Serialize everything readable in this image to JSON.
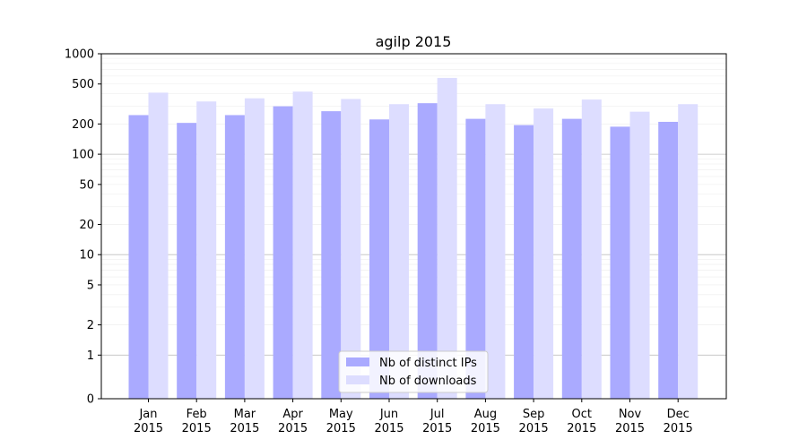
{
  "chart_data": {
    "type": "bar",
    "title": "agilp 2015",
    "xlabel": "",
    "ylabel": "",
    "y_scale": "symlog",
    "ylim": [
      0,
      1000
    ],
    "y_ticks": [
      0,
      1,
      2,
      5,
      10,
      20,
      50,
      100,
      200,
      500,
      1000
    ],
    "categories": [
      [
        "Jan",
        "2015"
      ],
      [
        "Feb",
        "2015"
      ],
      [
        "Mar",
        "2015"
      ],
      [
        "Apr",
        "2015"
      ],
      [
        "May",
        "2015"
      ],
      [
        "Jun",
        "2015"
      ],
      [
        "Jul",
        "2015"
      ],
      [
        "Aug",
        "2015"
      ],
      [
        "Sep",
        "2015"
      ],
      [
        "Oct",
        "2015"
      ],
      [
        "Nov",
        "2015"
      ],
      [
        "Dec",
        "2015"
      ]
    ],
    "series": [
      {
        "name": "Nb of distinct IPs",
        "color": "#aaaaff",
        "values": [
          245,
          205,
          245,
          300,
          268,
          222,
          322,
          225,
          195,
          225,
          188,
          210
        ]
      },
      {
        "name": "Nb of downloads",
        "color": "#ddddff",
        "values": [
          410,
          335,
          360,
          420,
          355,
          315,
          575,
          315,
          285,
          350,
          265,
          315
        ]
      }
    ],
    "grid": true,
    "legend_position": "lower-center"
  }
}
